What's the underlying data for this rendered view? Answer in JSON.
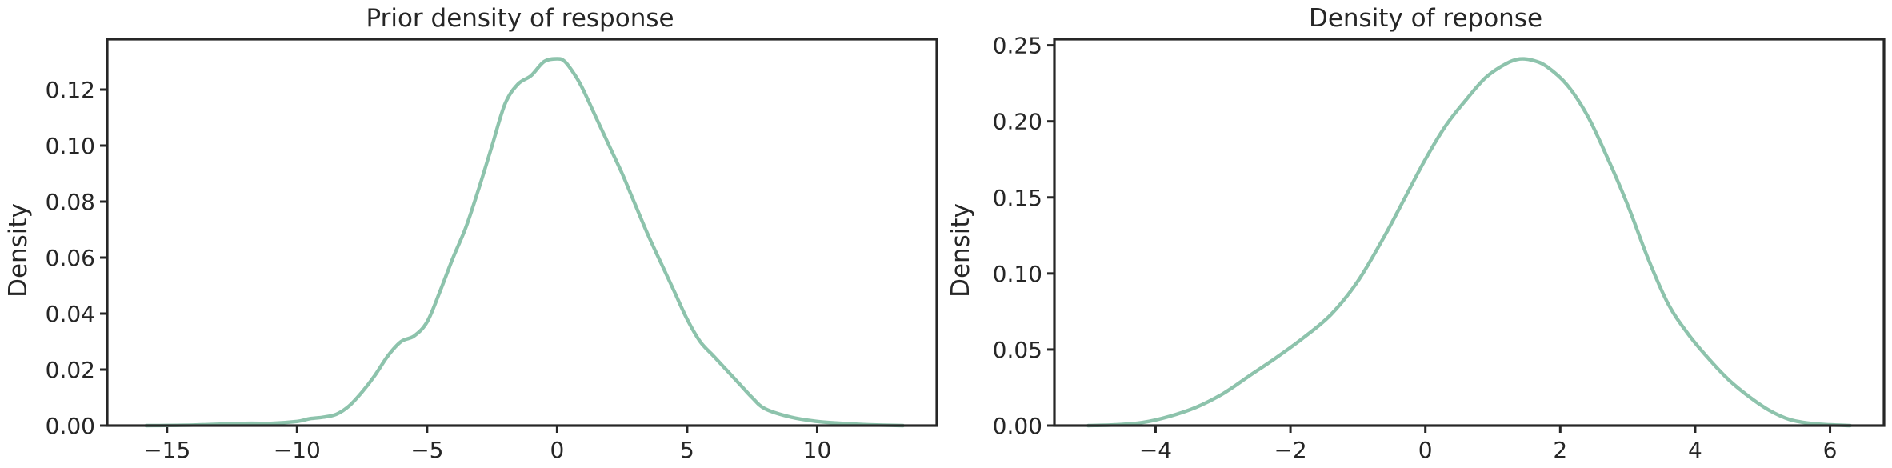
{
  "chart_data": [
    {
      "type": "line",
      "title": "Prior density of response",
      "xlabel": "",
      "ylabel": "Density",
      "xlim": [
        -17.3,
        14.6
      ],
      "ylim": [
        0,
        0.138
      ],
      "xticks": [
        -15,
        -10,
        -5,
        0,
        5,
        10
      ],
      "xtick_labels": [
        "−15",
        "−10",
        "−5",
        "0",
        "5",
        "10"
      ],
      "yticks": [
        0.0,
        0.02,
        0.04,
        0.06,
        0.08,
        0.1,
        0.12
      ],
      "ytick_labels": [
        "0.00",
        "0.02",
        "0.04",
        "0.06",
        "0.08",
        "0.10",
        "0.12"
      ],
      "grid": false,
      "color": "#8dc3ac",
      "series": [
        {
          "x": [
            -15.8,
            -14,
            -12,
            -11,
            -10,
            -9.5,
            -9,
            -8.5,
            -8,
            -7.5,
            -7,
            -6.5,
            -6,
            -5.5,
            -5,
            -4.5,
            -4,
            -3.5,
            -3,
            -2.5,
            -2,
            -1.5,
            -1,
            -0.5,
            0,
            0.3,
            0.7,
            1,
            1.5,
            2,
            2.5,
            3,
            3.5,
            4,
            4.5,
            5,
            5.5,
            6,
            6.5,
            7,
            7.5,
            8,
            9,
            10,
            11,
            12,
            13.3
          ],
          "y": [
            0.0,
            0.0002,
            0.0008,
            0.0008,
            0.0015,
            0.0025,
            0.003,
            0.004,
            0.007,
            0.012,
            0.018,
            0.025,
            0.03,
            0.032,
            0.037,
            0.048,
            0.06,
            0.071,
            0.085,
            0.1,
            0.115,
            0.122,
            0.125,
            0.13,
            0.131,
            0.13,
            0.125,
            0.12,
            0.11,
            0.1,
            0.09,
            0.079,
            0.068,
            0.058,
            0.048,
            0.038,
            0.03,
            0.025,
            0.02,
            0.015,
            0.01,
            0.006,
            0.003,
            0.0015,
            0.0008,
            0.0003,
            0.0
          ]
        }
      ]
    },
    {
      "type": "line",
      "title": "Density of reponse",
      "xlabel": "",
      "ylabel": "Density",
      "xlim": [
        -5.5,
        6.8
      ],
      "ylim": [
        0,
        0.254
      ],
      "xticks": [
        -4,
        -2,
        0,
        2,
        4,
        6
      ],
      "xtick_labels": [
        "−4",
        "−2",
        "0",
        "2",
        "4",
        "6"
      ],
      "yticks": [
        0.0,
        0.05,
        0.1,
        0.15,
        0.2,
        0.25
      ],
      "ytick_labels": [
        "0.00",
        "0.05",
        "0.10",
        "0.15",
        "0.20",
        "0.25"
      ],
      "grid": false,
      "color": "#8dc3ac",
      "series": [
        {
          "x": [
            -5.0,
            -4.6,
            -4.2,
            -3.8,
            -3.4,
            -3.0,
            -2.6,
            -2.2,
            -1.8,
            -1.4,
            -1.0,
            -0.6,
            -0.3,
            0,
            0.3,
            0.6,
            0.9,
            1.2,
            1.4,
            1.6,
            1.8,
            2.1,
            2.4,
            2.7,
            3.0,
            3.3,
            3.6,
            3.9,
            4.2,
            4.5,
            4.8,
            5.1,
            5.4,
            5.7,
            6.0,
            6.3
          ],
          "y": [
            0.0,
            0.0005,
            0.002,
            0.006,
            0.012,
            0.021,
            0.033,
            0.045,
            0.058,
            0.073,
            0.095,
            0.125,
            0.15,
            0.175,
            0.197,
            0.214,
            0.229,
            0.238,
            0.241,
            0.24,
            0.236,
            0.224,
            0.204,
            0.176,
            0.145,
            0.11,
            0.08,
            0.06,
            0.044,
            0.03,
            0.019,
            0.01,
            0.004,
            0.0015,
            0.0005,
            0.0
          ]
        }
      ]
    }
  ]
}
